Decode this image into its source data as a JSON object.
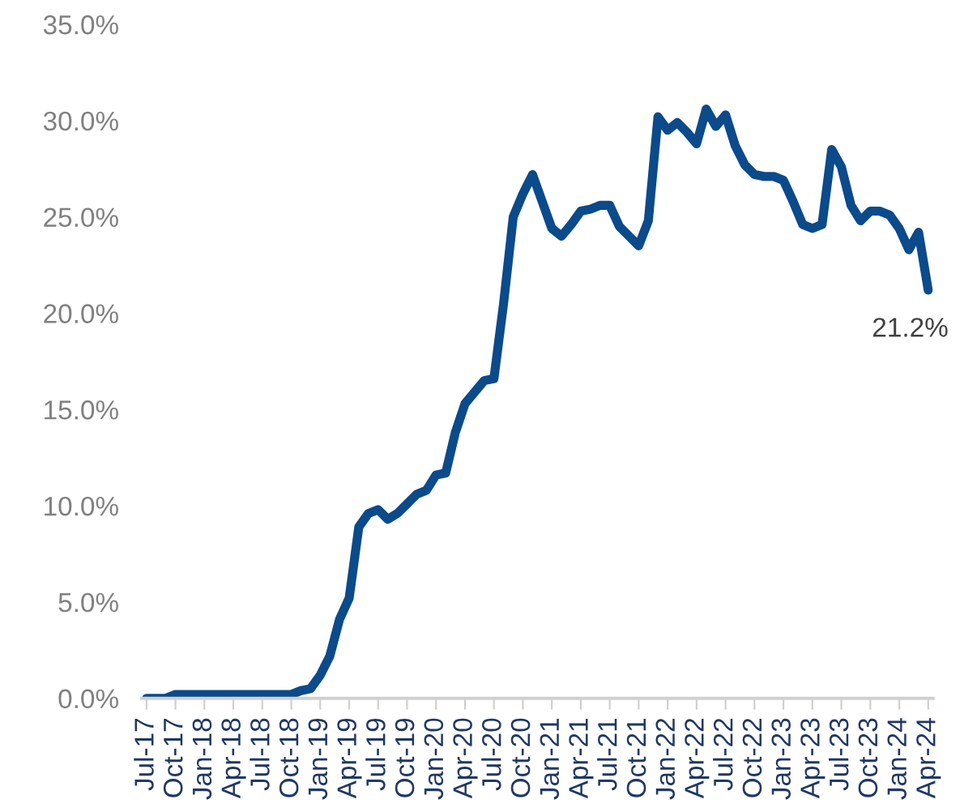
{
  "chart_data": {
    "type": "line",
    "categories": [
      "Jul-17",
      null,
      null,
      "Oct-17",
      null,
      null,
      "Jan-18",
      null,
      null,
      "Apr-18",
      null,
      null,
      "Jul-18",
      null,
      null,
      "Oct-18",
      null,
      null,
      "Jan-19",
      null,
      null,
      "Apr-19",
      null,
      null,
      "Jul-19",
      null,
      null,
      "Oct-19",
      null,
      null,
      "Jan-20",
      null,
      null,
      "Apr-20",
      null,
      null,
      "Jul-20",
      null,
      null,
      "Oct-20",
      null,
      null,
      "Jan-21",
      null,
      null,
      "Apr-21",
      null,
      null,
      "Jul-21",
      null,
      null,
      "Oct-21",
      null,
      null,
      "Jan-22",
      null,
      null,
      "Apr-22",
      null,
      null,
      "Jul-22",
      null,
      null,
      "Oct-22",
      null,
      null,
      "Jan-23",
      null,
      null,
      "Apr-23",
      null,
      null,
      "Jul-23",
      null,
      null,
      "Oct-23",
      null,
      null,
      "Jan-24",
      null,
      null,
      "Apr-24"
    ],
    "series": [
      {
        "color": "#0b4a8b",
        "values": [
          0.0,
          0.0,
          0.0,
          0.2,
          0.2,
          0.2,
          0.2,
          0.2,
          0.2,
          0.2,
          0.2,
          0.2,
          0.2,
          0.2,
          0.2,
          0.2,
          0.4,
          0.5,
          1.2,
          2.2,
          4.1,
          5.2,
          8.9,
          9.6,
          9.8,
          9.3,
          9.6,
          10.1,
          10.6,
          10.8,
          11.6,
          11.7,
          13.8,
          15.3,
          15.9,
          16.5,
          16.6,
          20.5,
          25.0,
          26.2,
          27.2,
          25.8,
          24.4,
          24.0,
          24.6,
          25.3,
          25.4,
          25.6,
          25.6,
          24.5,
          24.0,
          23.5,
          24.8,
          30.2,
          29.5,
          29.9,
          29.4,
          28.8,
          30.6,
          29.7,
          30.3,
          28.7,
          27.7,
          27.2,
          27.1,
          27.1,
          26.9,
          25.8,
          24.6,
          24.4,
          24.6,
          28.5,
          27.6,
          25.6,
          24.8,
          25.3,
          25.3,
          25.1,
          24.4,
          23.3,
          24.2,
          21.2
        ],
        "value_labels": [
          null,
          null,
          null,
          null,
          null,
          null,
          null,
          null,
          null,
          null,
          null,
          null,
          null,
          null,
          null,
          null,
          null,
          null,
          null,
          null,
          null,
          null,
          null,
          null,
          null,
          null,
          null,
          null,
          null,
          null,
          null,
          null,
          null,
          null,
          null,
          null,
          null,
          null,
          null,
          null,
          null,
          null,
          null,
          null,
          null,
          null,
          null,
          null,
          null,
          null,
          null,
          null,
          null,
          null,
          null,
          null,
          null,
          null,
          null,
          null,
          null,
          null,
          null,
          null,
          null,
          null,
          null,
          null,
          null,
          null,
          null,
          null,
          null,
          null,
          null,
          null,
          null,
          null,
          null,
          null,
          null,
          "21.2%"
        ]
      }
    ],
    "ylim": [
      0,
      35
    ],
    "yticks": [
      {
        "value": 0,
        "label": "0.0%"
      },
      {
        "value": 5,
        "label": "5.0%"
      },
      {
        "value": 10,
        "label": "10.0%"
      },
      {
        "value": 15,
        "label": "15.0%"
      },
      {
        "value": 20,
        "label": "20.0%"
      },
      {
        "value": 25,
        "label": "25.0%"
      },
      {
        "value": 30,
        "label": "30.0%"
      },
      {
        "value": 35,
        "label": "35.0%"
      }
    ],
    "grid": false,
    "marker": "none",
    "line_style": "solid"
  }
}
